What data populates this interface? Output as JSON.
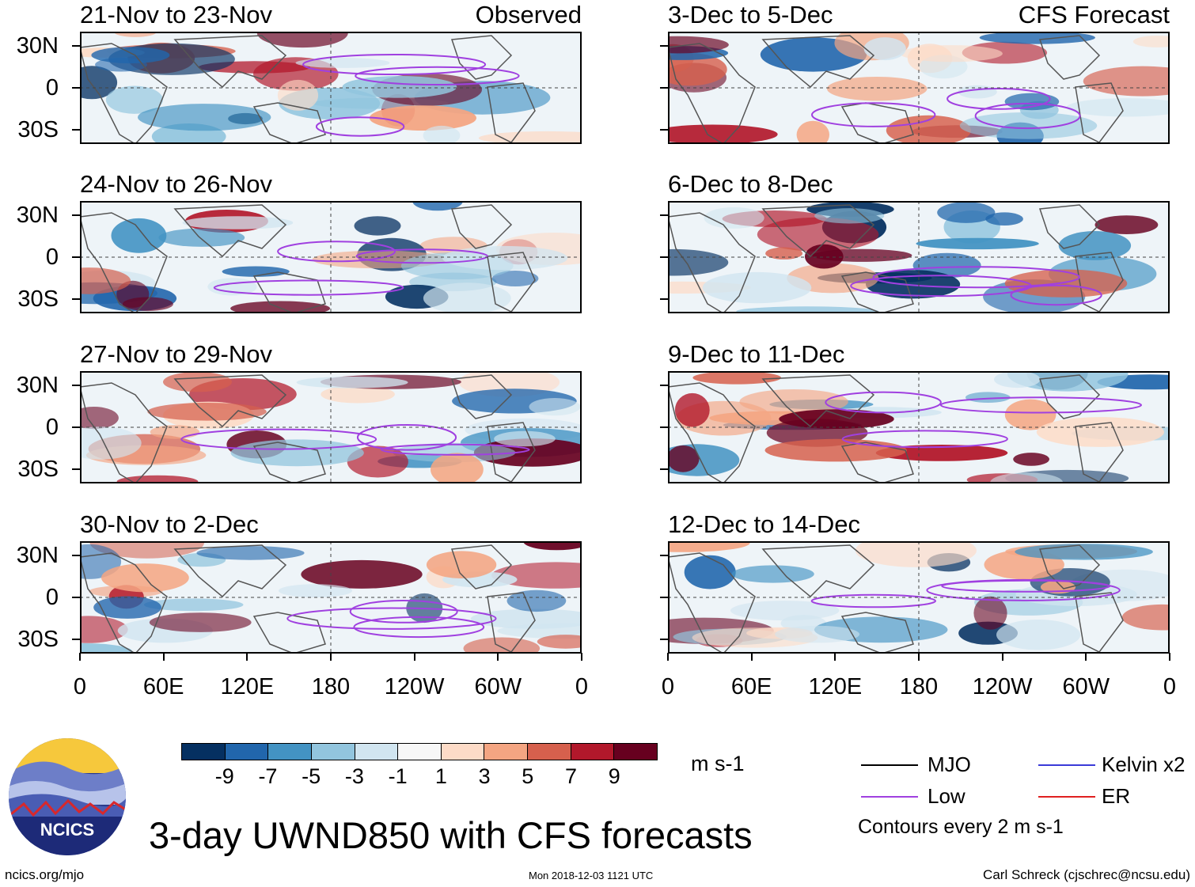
{
  "panels": {
    "observed": [
      {
        "title": "21-Nov to 23-Nov",
        "tag": "Observed"
      },
      {
        "title": "24-Nov to 26-Nov"
      },
      {
        "title": "27-Nov to 29-Nov"
      },
      {
        "title": "30-Nov to 2-Dec"
      }
    ],
    "forecast": [
      {
        "title": "3-Dec to 5-Dec",
        "tag": "CFS Forecast"
      },
      {
        "title": "6-Dec to 8-Dec"
      },
      {
        "title": "9-Dec to 11-Dec"
      },
      {
        "title": "12-Dec to 14-Dec"
      }
    ]
  },
  "lat_labels": [
    "30N",
    "0",
    "30S"
  ],
  "lon_labels": [
    "0",
    "60E",
    "120E",
    "180",
    "120W",
    "60W",
    "0"
  ],
  "colorbar": {
    "colors": [
      "#053061",
      "#2166ac",
      "#4393c3",
      "#92c5de",
      "#d1e5f0",
      "#f7f7f7",
      "#fddbc7",
      "#f4a582",
      "#d6604d",
      "#b2182b",
      "#67001f"
    ],
    "labels": [
      "-9",
      "-7",
      "-5",
      "-3",
      "-1",
      "1",
      "3",
      "5",
      "7",
      "9"
    ],
    "unit": "m s-1"
  },
  "legend": {
    "mjo": {
      "label": "MJO",
      "color": "#000000"
    },
    "kelvin": {
      "label": "Kelvin x2",
      "color": "#3b3bd8"
    },
    "low": {
      "label": "Low",
      "color": "#a040e0"
    },
    "er": {
      "label": "ER",
      "color": "#e02020"
    },
    "contour_note": "Contours every 2 m s-1"
  },
  "logo": {
    "text": "NCICS"
  },
  "main_title": "3-day UWND850 with CFS forecasts",
  "footer": {
    "site": "ncics.org/mjo",
    "timestamp": "Mon 2018-12-03 1121 UTC",
    "credit": "Carl Schreck (cjschrec@ncsu.edu)"
  }
}
